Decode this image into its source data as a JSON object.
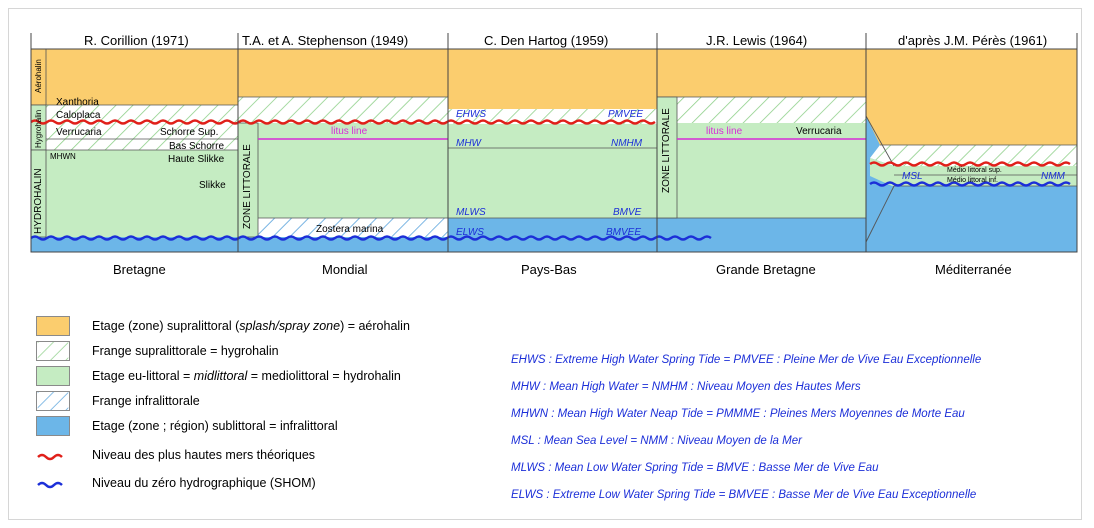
{
  "columns": [
    {
      "title": "R. Corillion (1971)",
      "region": "Bretagne"
    },
    {
      "title": "T.A. et A. Stephenson (1949)",
      "region": "Mondial"
    },
    {
      "title": "C. Den Hartog (1959)",
      "region": "Pays-Bas"
    },
    {
      "title": "J.R. Lewis (1964)",
      "region": "Grande Bretagne"
    },
    {
      "title": "d'après J.M. Pérès (1961)",
      "region": "Méditerranée"
    }
  ],
  "corillion": {
    "aerohalin": "Aérohalin",
    "hygrohalin": "Hygrohalin",
    "hydrohalin": "HYDROHALIN",
    "xanthoria": "Xanthoria",
    "caloplaca": "Caloplaca",
    "verrucaria": "Verrucaria",
    "schorre_sup": "Schorre Sup.",
    "bas_schorre": "Bas Schorre",
    "mhwn": "MHWN",
    "haute_slikke": "Haute Slikke",
    "slikke": "Slikke"
  },
  "stephenson": {
    "zone": "ZONE LITTORALE",
    "litus": "litus line",
    "zostera": "Zostera marina"
  },
  "den_hartog": {
    "ehws": "EHWS",
    "pmvee": "PMVEE",
    "mhw": "MHW",
    "nmhm": "NMHM",
    "mlws": "MLWS",
    "bmve": "BMVE",
    "elws": "ELWS",
    "bmvee": "BMVEE"
  },
  "lewis": {
    "zone": "ZONE LITTORALE",
    "litus": "litus line",
    "verrucaria": "Verrucaria"
  },
  "peres": {
    "msl": "MSL",
    "nmm": "NMM",
    "medio_sup": "Médio littoral sup.",
    "medio_inf": "Médio littoral inf."
  },
  "legend": [
    {
      "kind": "supralittoral",
      "text": "Etage (zone) supralittoral (splash/spray zone) = aérohalin"
    },
    {
      "kind": "frange-supra",
      "text": "Frange supralittorale = hygrohalin"
    },
    {
      "kind": "eulittoral",
      "text": "Etage eu-littoral = midlittoral = mediolittoral = hydrohalin"
    },
    {
      "kind": "frange-infra",
      "text": "Frange infralittorale"
    },
    {
      "kind": "sublittoral",
      "text": "Etage (zone ; région) sublittoral = infralittoral"
    },
    {
      "kind": "red-wave",
      "text": "Niveau des plus hautes mers théoriques"
    },
    {
      "kind": "blue-wave",
      "text": "Niveau du zéro hydrographique (SHOM)"
    }
  ],
  "glossary": [
    "EHWS : Extreme High Water Spring Tide = PMVEE : Pleine Mer de Vive Eau Exceptionnelle",
    "MHW : Mean High Water = NMHM : Niveau Moyen des Hautes Mers",
    "MHWN : Mean High Water Neap Tide = PMMME : Pleines Mers Moyennes de Morte Eau",
    "MSL : Mean Sea Level = NMM : Niveau Moyen de la Mer",
    "MLWS : Mean Low Water Spring Tide = BMVE : Basse Mer de Vive Eau",
    "ELWS : Extreme Low Water Spring Tide = BMVEE : Basse Mer de Vive Eau Exceptionnelle"
  ],
  "colors": {
    "supralittoral": "#fbcd6e",
    "eulittoral": "#c5ecc2",
    "sublittoral": "#6cb6e8",
    "red_line": "#e0201a",
    "blue_line": "#1c2fd8",
    "magenta": "#d62dd6"
  }
}
